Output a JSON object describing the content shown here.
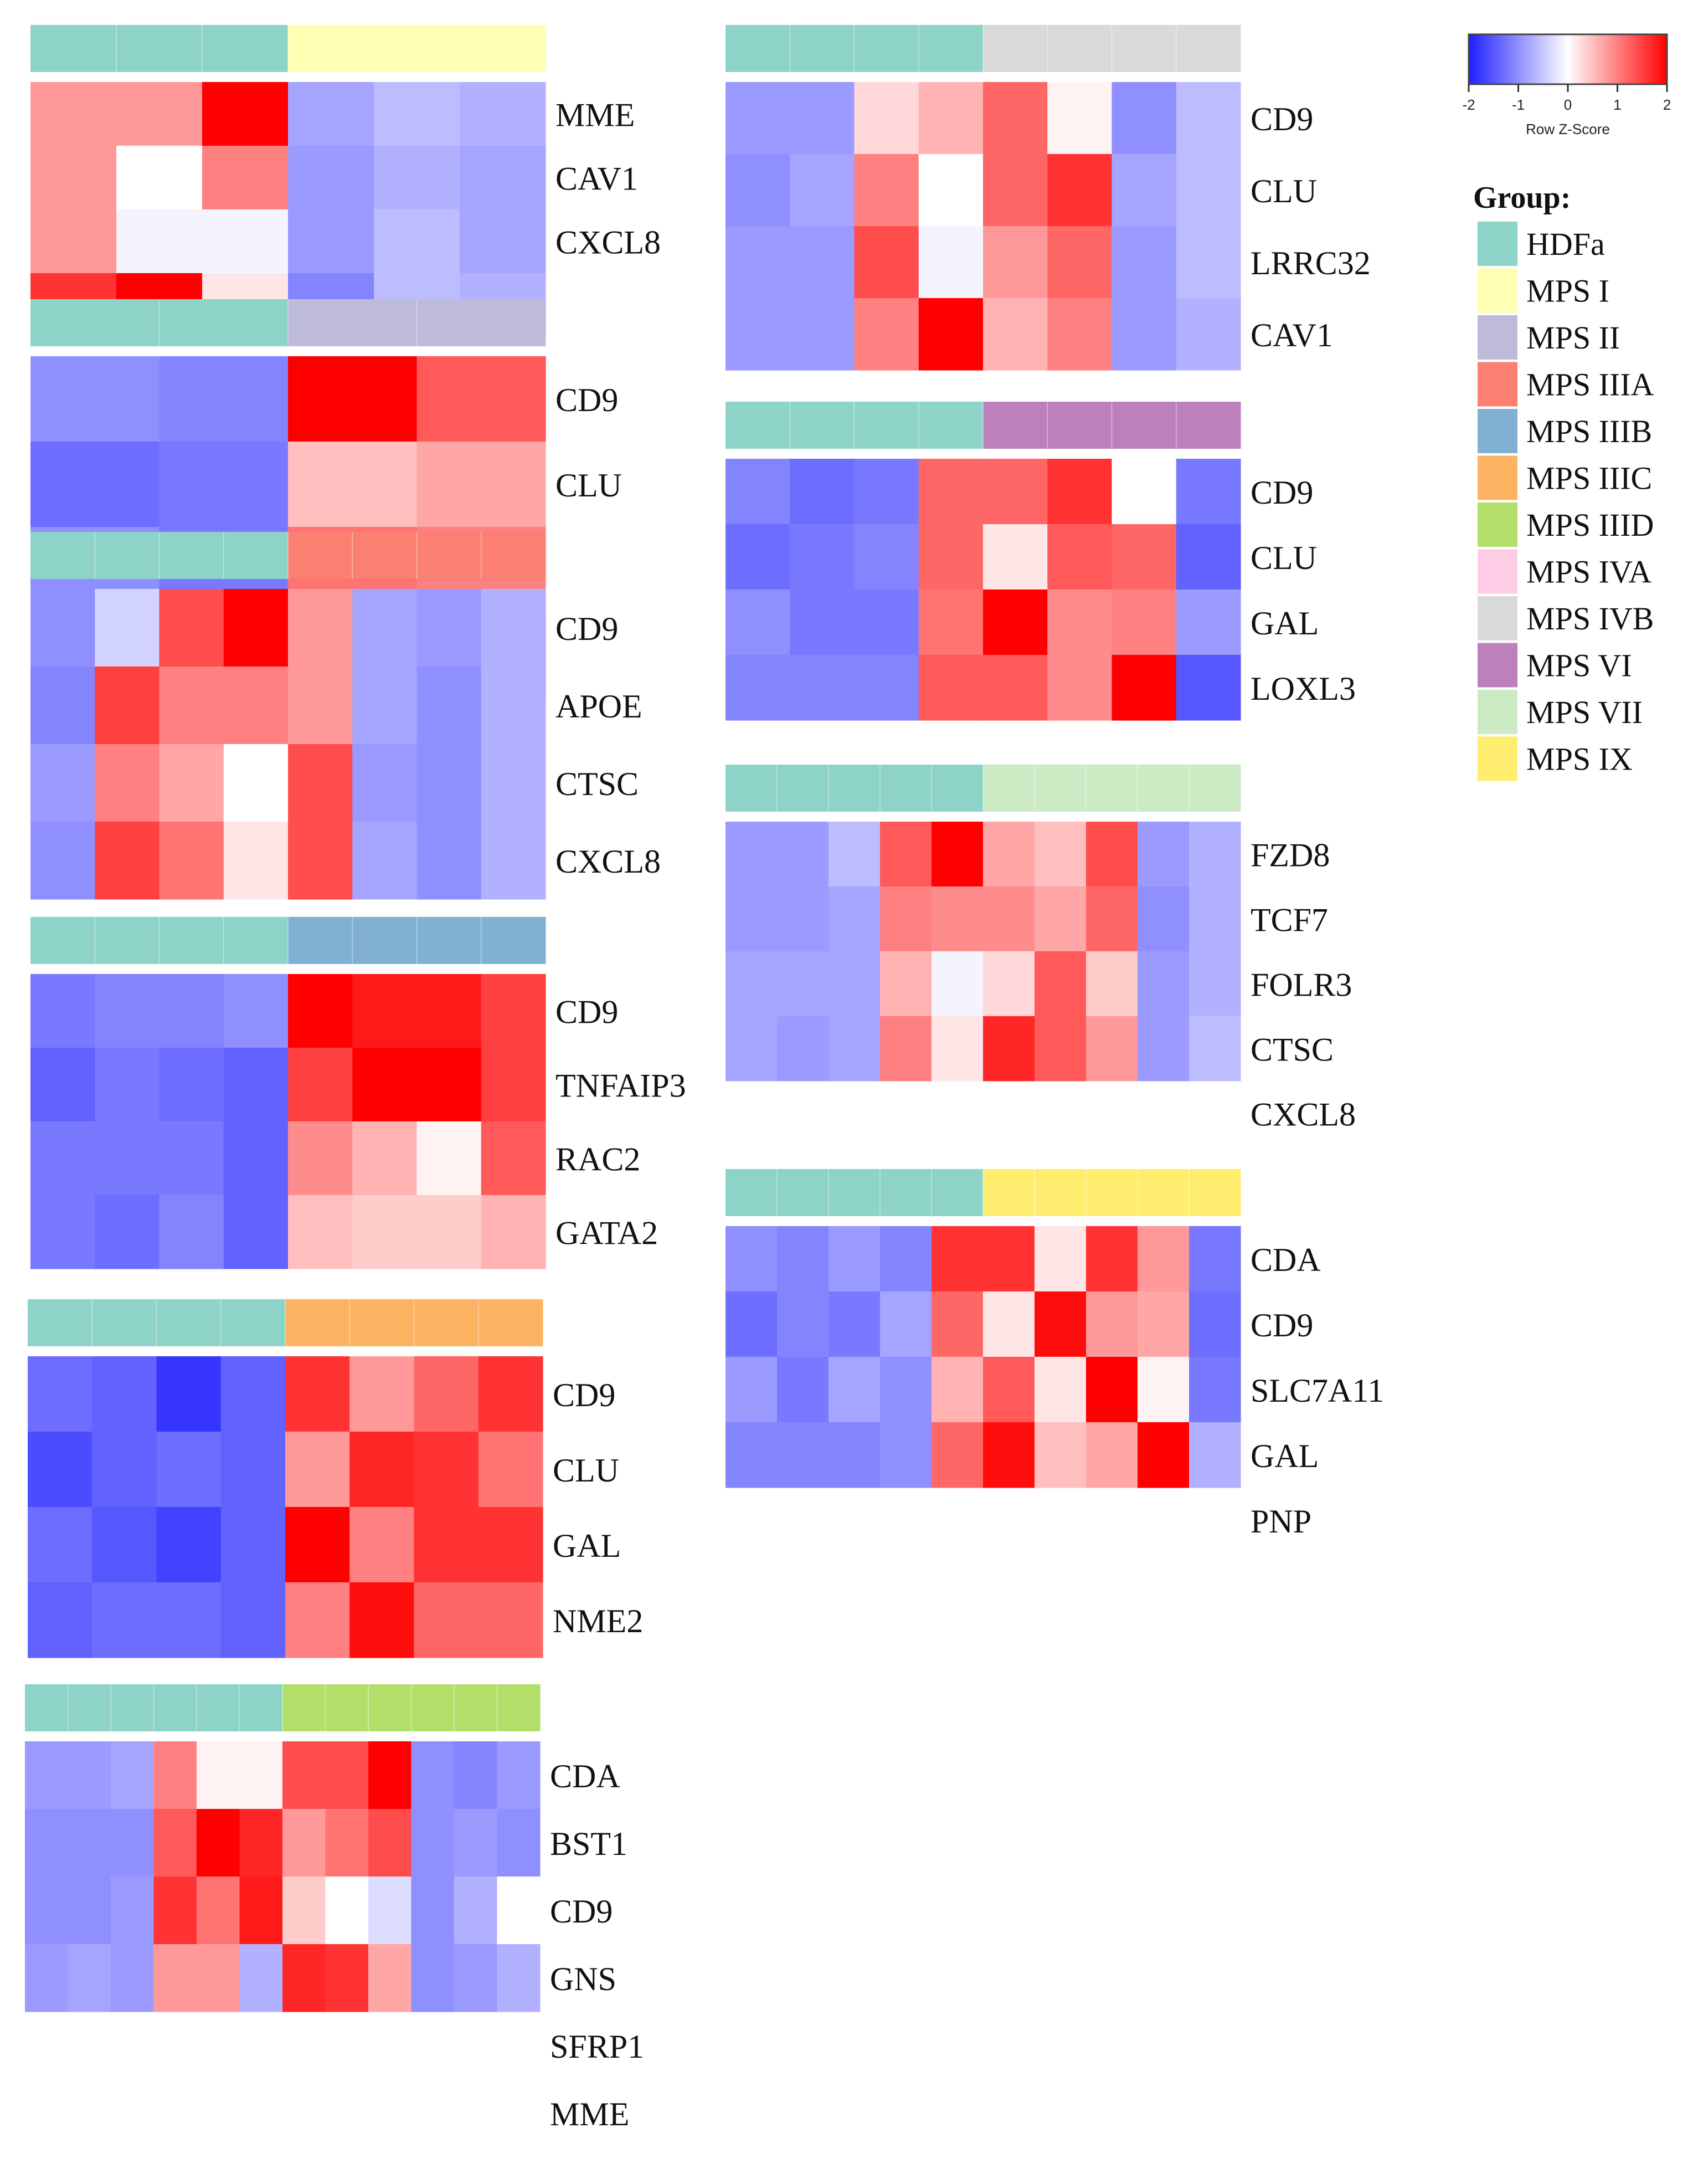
{
  "scale": {
    "label": "Row Z-Score",
    "ticks": [
      "-2",
      "-1",
      "0",
      "1",
      "2"
    ],
    "low_color": "#1f1fff",
    "mid_color": "#ffffff",
    "high_color": "#ff0000"
  },
  "legend": {
    "title": "Group:",
    "items": [
      {
        "label": "HDFa",
        "color": "#8dd3c7"
      },
      {
        "label": "MPS I",
        "color": "#ffffb3"
      },
      {
        "label": "MPS II",
        "color": "#bebada"
      },
      {
        "label": "MPS IIIA",
        "color": "#fb8072"
      },
      {
        "label": "MPS IIIB",
        "color": "#80b1d3"
      },
      {
        "label": "MPS IIIC",
        "color": "#fdb462"
      },
      {
        "label": "MPS IIID",
        "color": "#b3de69"
      },
      {
        "label": "MPS IVA",
        "color": "#fccde5"
      },
      {
        "label": "MPS IVB",
        "color": "#d9d9d9"
      },
      {
        "label": "MPS VI",
        "color": "#bc80bd"
      },
      {
        "label": "MPS VII",
        "color": "#ccebc5"
      },
      {
        "label": "MPS IX",
        "color": "#ffed6f"
      }
    ]
  },
  "chart_data": [
    {
      "type": "heatmap",
      "groups": [
        "HDFa",
        "MPS I"
      ],
      "genes": [
        "MME",
        "CAV1",
        "CXCL8"
      ],
      "values": [
        [
          0.8,
          0.8,
          0.8,
          1.6
        ],
        [
          0.8,
          0.0,
          -0.1,
          2.0
        ],
        [
          2.0,
          1.0,
          -0.1,
          0.2
        ],
        [
          -0.8,
          -0.9,
          -0.9,
          -1.1
        ],
        [
          -0.6,
          -0.7,
          -0.6,
          -0.6
        ],
        [
          -0.7,
          -0.8,
          -0.8,
          -0.7
        ]
      ]
    },
    {
      "type": "heatmap",
      "groups": [
        "HDFa",
        "MPS II"
      ],
      "genes": [
        "CD9",
        "CLU"
      ],
      "values": [
        [
          -1.0,
          -1.3,
          -1.0,
          -1.1
        ],
        [
          -1.1,
          -1.2,
          -1.2,
          -1.1
        ],
        [
          2.0,
          0.5,
          1.1,
          0.7
        ],
        [
          1.3,
          0.7,
          1.0,
          1.8
        ]
      ]
    },
    {
      "type": "heatmap",
      "groups": [
        "HDFa",
        "MPS IIIA"
      ],
      "genes": [
        "CD9",
        "APOE",
        "CTSC",
        "CXCL8"
      ],
      "values": [
        [
          -1.0,
          -1.1,
          -0.9,
          -1.0
        ],
        [
          -0.4,
          1.5,
          1.0,
          1.5
        ],
        [
          1.4,
          1.0,
          0.7,
          1.1
        ],
        [
          2.0,
          1.0,
          0.0,
          0.2
        ],
        [
          0.8,
          0.8,
          1.4,
          1.4
        ],
        [
          -0.8,
          -0.8,
          -0.9,
          -0.8
        ],
        [
          -0.9,
          -1.0,
          -1.0,
          -1.0
        ],
        [
          -0.7,
          -0.7,
          -0.7,
          -0.7
        ]
      ]
    },
    {
      "type": "heatmap",
      "groups": [
        "HDFa",
        "MPS IIIB"
      ],
      "genes": [
        "CD9",
        "TNFAIP3",
        "RAC2",
        "GATA2"
      ],
      "values": [
        [
          -1.2,
          -1.4,
          -1.2,
          -1.2
        ],
        [
          -1.1,
          -1.2,
          -1.2,
          -1.3
        ],
        [
          -1.1,
          -1.3,
          -1.2,
          -1.1
        ],
        [
          -1.0,
          -1.4,
          -1.4,
          -1.4
        ],
        [
          2.0,
          1.5,
          0.9,
          0.5
        ],
        [
          1.8,
          2.0,
          0.6,
          0.4
        ],
        [
          1.8,
          2.0,
          0.1,
          0.4
        ],
        [
          1.5,
          1.5,
          1.3,
          0.6
        ]
      ]
    },
    {
      "type": "heatmap",
      "groups": [
        "HDFa",
        "MPS IIIC"
      ],
      "genes": [
        "CD9",
        "CLU",
        "GAL",
        "NME2"
      ],
      "values": [
        [
          -1.3,
          -1.6,
          -1.3,
          -1.4
        ],
        [
          -1.4,
          -1.4,
          -1.5,
          -1.3
        ],
        [
          -1.8,
          -1.3,
          -1.7,
          -1.3
        ],
        [
          -1.4,
          -1.4,
          -1.4,
          -1.4
        ],
        [
          1.6,
          0.8,
          2.0,
          1.0
        ],
        [
          0.8,
          1.7,
          1.0,
          1.9
        ],
        [
          1.2,
          1.6,
          1.6,
          1.2
        ],
        [
          1.6,
          1.1,
          1.6,
          1.2
        ]
      ]
    },
    {
      "type": "heatmap",
      "groups": [
        "HDFa",
        "MPS IIID"
      ],
      "genes": [
        "CDA",
        "BST1",
        "CD9",
        "GNS",
        "SFRP1",
        "MME"
      ],
      "values": [
        [
          -0.9,
          -1.0,
          -1.0,
          -0.9
        ],
        [
          -0.9,
          -1.0,
          -1.0,
          -0.8
        ],
        [
          -0.8,
          -1.0,
          -0.9,
          -0.9
        ],
        [
          1.0,
          1.3,
          1.6,
          0.8
        ],
        [
          0.1,
          2.0,
          1.1,
          0.8
        ],
        [
          0.1,
          1.7,
          1.8,
          -0.7
        ],
        [
          1.4,
          0.8,
          0.4,
          1.7
        ],
        [
          1.4,
          1.1,
          0.0,
          1.6
        ],
        [
          2.0,
          1.4,
          -0.3,
          0.7
        ],
        [
          -1.0,
          -1.0,
          -1.0,
          -1.0
        ],
        [
          -1.1,
          -0.9,
          -0.7,
          -0.9
        ],
        [
          -0.9,
          -1.0,
          0.0,
          -0.7
        ]
      ]
    },
    {
      "type": "heatmap",
      "groups": [
        "HDFa",
        "MPS IVB"
      ],
      "genes": [
        "CD9",
        "CLU",
        "LRRC32",
        "CAV1"
      ],
      "values": [
        [
          -0.9,
          -1.0,
          -0.9,
          -0.9
        ],
        [
          -0.9,
          -0.8,
          -0.9,
          -0.9
        ],
        [
          0.3,
          1.0,
          1.4,
          1.0
        ],
        [
          0.6,
          0.0,
          -0.1,
          2.0
        ],
        [
          1.2,
          1.2,
          0.8,
          0.6
        ],
        [
          0.1,
          1.6,
          1.2,
          1.0
        ],
        [
          -1.0,
          -0.8,
          -0.9,
          -0.9
        ],
        [
          -0.6,
          -0.6,
          -0.6,
          -0.7
        ]
      ]
    },
    {
      "type": "heatmap",
      "groups": [
        "HDFa",
        "MPS VI"
      ],
      "genes": [
        "CD9",
        "CLU",
        "GAL",
        "LOXL3"
      ],
      "values": [
        [
          -1.1,
          -1.3,
          -1.0,
          -1.1
        ],
        [
          -1.3,
          -1.2,
          -1.2,
          -1.1
        ],
        [
          -1.2,
          -1.1,
          -1.2,
          -1.1
        ],
        [
          1.2,
          1.2,
          1.1,
          1.3
        ],
        [
          1.2,
          0.2,
          2.0,
          1.3
        ],
        [
          1.6,
          1.3,
          0.9,
          0.9
        ],
        [
          0.0,
          1.2,
          1.0,
          2.0
        ],
        [
          -1.2,
          -1.4,
          -0.9,
          -1.5
        ]
      ]
    },
    {
      "type": "heatmap",
      "groups": [
        "HDFa",
        "MPS VII"
      ],
      "genes": [
        "FZD8",
        "TCF7",
        "FOLR3",
        "CTSC",
        "CXCL8"
      ],
      "values": [
        [
          -0.9,
          -0.9,
          -0.8,
          -0.8
        ],
        [
          -0.9,
          -0.9,
          -0.8,
          -0.9
        ],
        [
          -0.6,
          -0.8,
          -0.8,
          -0.8
        ],
        [
          1.3,
          1.0,
          0.6,
          1.0
        ],
        [
          2.0,
          0.9,
          -0.1,
          0.2
        ],
        [
          0.7,
          0.9,
          0.3,
          1.7
        ],
        [
          0.5,
          0.7,
          1.3,
          1.3
        ],
        [
          1.4,
          1.2,
          0.4,
          0.8
        ],
        [
          -0.9,
          -1.0,
          -0.9,
          -0.9
        ],
        [
          -0.7,
          -0.7,
          -0.7,
          -0.6
        ]
      ]
    },
    {
      "type": "heatmap",
      "groups": [
        "HDFa",
        "MPS IX"
      ],
      "genes": [
        "CDA",
        "CD9",
        "SLC7A11",
        "GAL",
        "PNP"
      ],
      "values": [
        [
          -1.0,
          -1.3,
          -0.9,
          -1.1
        ],
        [
          -1.1,
          -1.1,
          -1.2,
          -1.1
        ],
        [
          -0.9,
          -1.2,
          -0.8,
          -1.1
        ],
        [
          -1.1,
          -0.8,
          -1.0,
          -1.0
        ],
        [
          1.6,
          1.2,
          0.6,
          1.2
        ],
        [
          1.6,
          0.2,
          1.3,
          1.9
        ],
        [
          0.2,
          1.9,
          0.2,
          0.5
        ],
        [
          1.6,
          0.8,
          2.0,
          0.7
        ],
        [
          0.8,
          0.7,
          0.1,
          2.0
        ],
        [
          -1.2,
          -1.3,
          -1.2,
          -0.7
        ]
      ]
    }
  ]
}
